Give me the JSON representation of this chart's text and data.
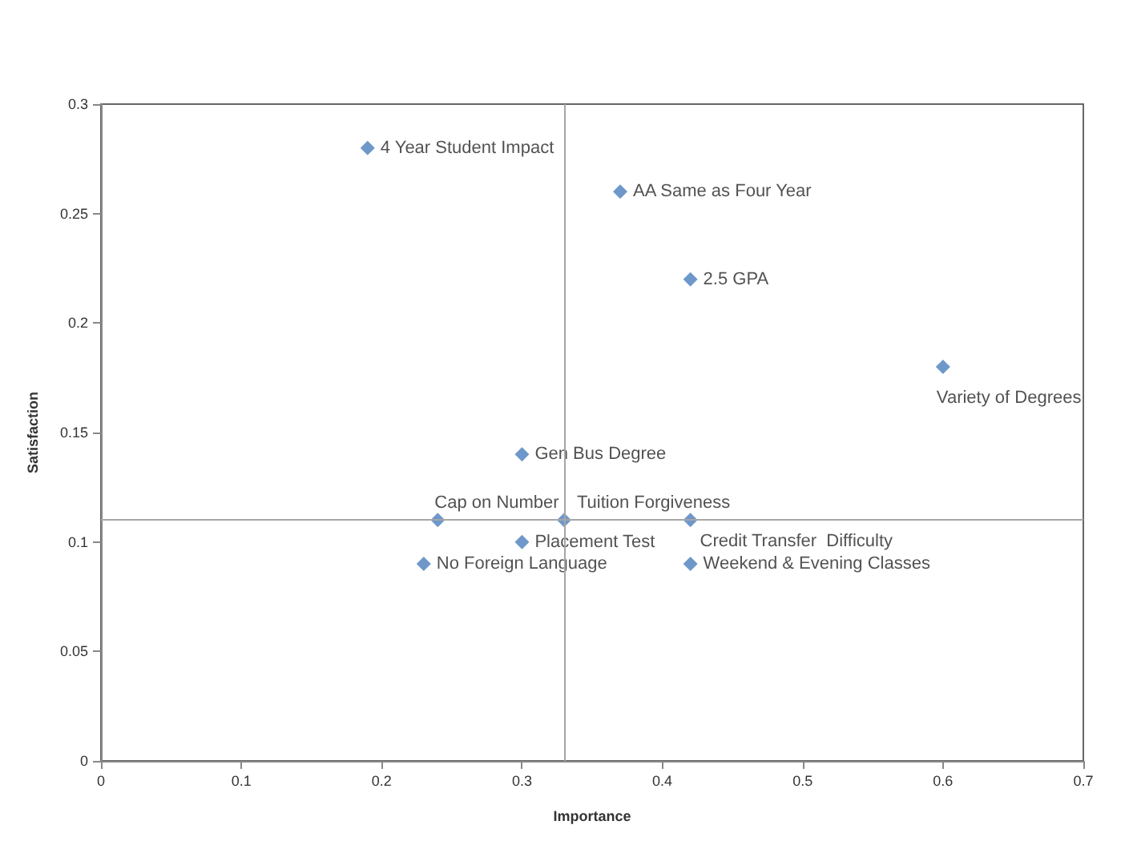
{
  "chart_data": {
    "type": "scatter",
    "xlabel": "Importance",
    "ylabel": "Satisfaction",
    "marker": "diamond",
    "x": [
      0.19,
      0.37,
      0.42,
      0.6,
      0.3,
      0.24,
      0.33,
      0.42,
      0.3,
      0.23,
      0.42
    ],
    "series": [
      {
        "color": "#4a7ebb",
        "values": [
          0.28,
          0.26,
          0.22,
          0.18,
          0.14,
          0.11,
          0.11,
          0.11,
          0.1,
          0.09,
          0.09
        ]
      }
    ],
    "annotations": [
      {
        "text": "4 Year Student Impact",
        "x": 0.19,
        "y": 0.28
      },
      {
        "text": "AA Same as Four Year",
        "x": 0.37,
        "y": 0.26
      },
      {
        "text": "2.5 GPA",
        "x": 0.42,
        "y": 0.22
      },
      {
        "text": "Variety of Degrees",
        "x": 0.6,
        "y": 0.18
      },
      {
        "text": "Gen Bus Degree",
        "x": 0.3,
        "y": 0.14
      },
      {
        "text": "Cap on Number",
        "x": 0.24,
        "y": 0.11
      },
      {
        "text": "Tuition Forgiveness",
        "x": 0.33,
        "y": 0.11
      },
      {
        "text": "Credit Transfer  Difficulty",
        "x": 0.42,
        "y": 0.11
      },
      {
        "text": "Placement Test",
        "x": 0.3,
        "y": 0.1
      },
      {
        "text": "No Foreign Language",
        "x": 0.23,
        "y": 0.09
      },
      {
        "text": "Weekend & Evening Classes",
        "x": 0.42,
        "y": 0.09
      }
    ],
    "ref_lines": [
      {
        "axis": "x",
        "value": 0.33,
        "color": "#a6a6a6"
      },
      {
        "axis": "y",
        "value": 0.11,
        "color": "#a6a6a6"
      }
    ],
    "xlim": [
      0,
      0.7
    ],
    "xticks": [
      0,
      0.1,
      0.2,
      0.3,
      0.4,
      0.5,
      0.6,
      0.7
    ],
    "ylim": [
      0,
      0.3
    ],
    "yticks": [
      0,
      0.05,
      0.1,
      0.15,
      0.2,
      0.25,
      0.3
    ],
    "grid": false
  }
}
